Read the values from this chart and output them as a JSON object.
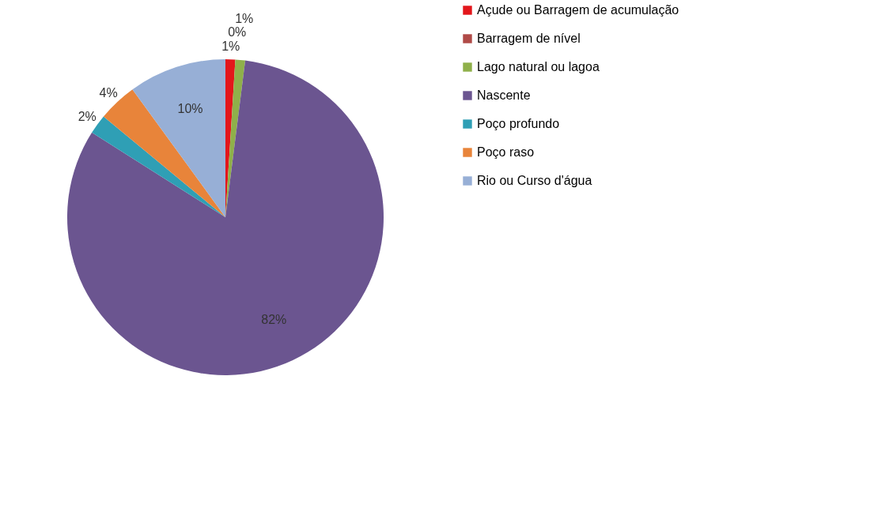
{
  "chart_data": {
    "type": "pie",
    "categories": [
      "Açude ou Barragem de acumulação",
      "Barragem de nível",
      "Lago natural ou lagoa",
      "Nascente",
      "Poço profundo",
      "Poço raso",
      "Rio ou Curso d'água"
    ],
    "values": [
      1,
      0,
      1,
      82,
      2,
      4,
      10
    ],
    "colors": [
      "#e3161b",
      "#b04a47",
      "#8fb04a",
      "#6b5590",
      "#2f9fb5",
      "#e8843a",
      "#97afd6"
    ],
    "value_labels": [
      "1%",
      "0%",
      "1%",
      "82%",
      "2%",
      "4%",
      "10%"
    ],
    "legend": "right"
  }
}
